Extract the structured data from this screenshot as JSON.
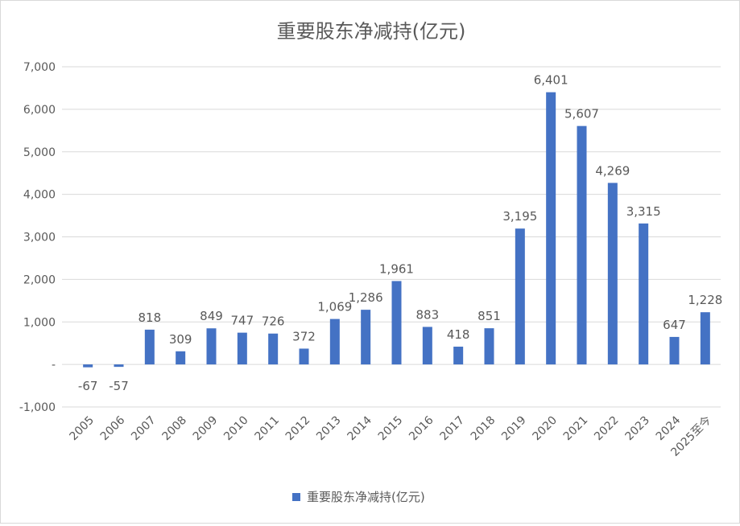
{
  "chart_data": {
    "type": "bar",
    "title": "重要股东净减持(亿元)",
    "categories": [
      "2005",
      "2006",
      "2007",
      "2008",
      "2009",
      "2010",
      "2011",
      "2012",
      "2013",
      "2014",
      "2015",
      "2016",
      "2017",
      "2018",
      "2019",
      "2020",
      "2021",
      "2022",
      "2023",
      "2024",
      "2025至今"
    ],
    "series": [
      {
        "name": "重要股东净减持(亿元)",
        "values": [
          -67,
          -57,
          818,
          309,
          849,
          747,
          726,
          372,
          1069,
          1286,
          1961,
          883,
          418,
          851,
          3195,
          6401,
          5607,
          4269,
          3315,
          647,
          1228
        ],
        "color": "#4472C4"
      }
    ],
    "data_labels": [
      "-67",
      "-57",
      "818",
      "309",
      "849",
      "747",
      "726",
      "372",
      "1,069",
      "1,286",
      "1,961",
      "883",
      "418",
      "851",
      "3,195",
      "6,401",
      "5,607",
      "4,269",
      "3,315",
      "647",
      "1,228"
    ],
    "ylim": [
      -1000,
      7000
    ],
    "yticks": [
      -1000,
      0,
      1000,
      2000,
      3000,
      4000,
      5000,
      6000,
      7000
    ],
    "ytick_labels": [
      "-1,000",
      "-",
      "1,000",
      "2,000",
      "3,000",
      "4,000",
      "5,000",
      "6,000",
      "7,000"
    ],
    "grid": true,
    "legend": "bottom",
    "xlabel": "",
    "ylabel": ""
  }
}
